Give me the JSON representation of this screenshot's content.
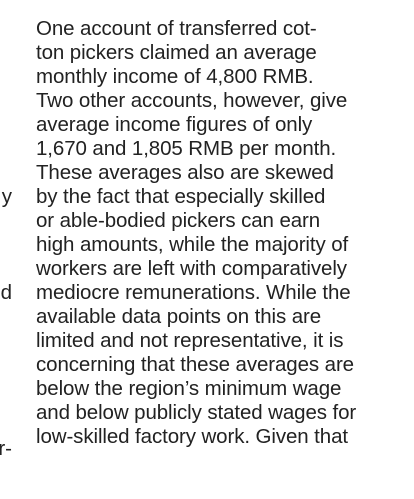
{
  "left_column_fragments": [
    {
      "text": "y",
      "row": 8
    },
    {
      "text": "d",
      "row": 11
    },
    {
      "text": "r-",
      "row": 18
    }
  ],
  "paragraph_lines": [
    "One account of transferred cot-",
    "ton pickers claimed an average",
    "monthly income of 4,800 RMB.",
    "Two other accounts, however, give",
    "average income figures of only",
    "1,670 and 1,805 RMB per month.",
    "These averages also are skewed",
    "by the fact that especially skilled",
    "or able-bodied pickers can earn",
    "high amounts, while the majority of",
    "workers are left with comparatively",
    "mediocre remunerations. While the",
    "available data points on this are",
    "limited and not representative, it is",
    "concerning that these averages are",
    "below the region’s minimum wage",
    "and below publicly stated wages for",
    "low-skilled factory work. Given that"
  ]
}
